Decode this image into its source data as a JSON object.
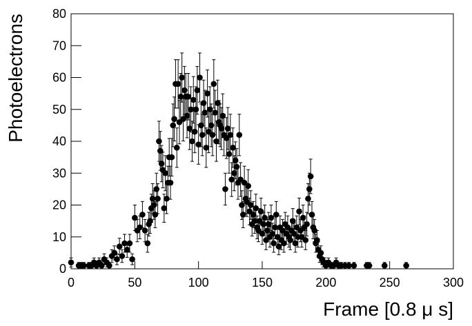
{
  "chart_data": {
    "type": "scatter",
    "xlabel": "Frame [0.8 μ s]",
    "ylabel": "Photoelectrons",
    "xlim": [
      0,
      300
    ],
    "ylim": [
      0,
      80
    ],
    "xticks": [
      0,
      50,
      100,
      150,
      200,
      250,
      300
    ],
    "yticks": [
      0,
      10,
      20,
      30,
      40,
      50,
      60,
      70,
      80
    ],
    "color": "#000000",
    "series": [
      {
        "x": [
          0,
          6,
          8,
          10,
          14,
          16,
          18,
          20,
          22,
          24,
          26,
          28,
          30,
          32,
          34,
          36,
          38,
          40,
          42,
          44,
          46,
          48,
          50,
          52,
          54,
          56,
          58,
          60,
          61,
          62,
          63,
          64,
          65,
          66,
          67,
          68,
          69,
          70,
          71,
          72,
          73,
          74,
          75,
          76,
          77,
          78,
          79,
          80,
          81,
          82,
          83,
          84,
          85,
          86,
          87,
          88,
          89,
          90,
          91,
          92,
          93,
          94,
          95,
          96,
          97,
          98,
          99,
          100,
          101,
          102,
          103,
          104,
          105,
          106,
          107,
          108,
          109,
          110,
          111,
          112,
          113,
          114,
          115,
          116,
          117,
          118,
          119,
          120,
          121,
          122,
          123,
          124,
          125,
          126,
          127,
          128,
          129,
          130,
          131,
          132,
          133,
          134,
          135,
          136,
          137,
          138,
          139,
          140,
          141,
          142,
          143,
          144,
          145,
          146,
          147,
          148,
          149,
          150,
          151,
          152,
          153,
          154,
          155,
          156,
          157,
          158,
          159,
          160,
          161,
          162,
          163,
          164,
          165,
          166,
          167,
          168,
          169,
          170,
          171,
          172,
          173,
          174,
          175,
          176,
          177,
          178,
          179,
          180,
          181,
          182,
          183,
          184,
          185,
          186,
          187,
          188,
          189,
          190,
          191,
          192,
          193,
          194,
          195,
          196,
          197,
          198,
          199,
          200,
          202,
          204,
          206,
          208,
          210,
          212,
          215,
          218,
          222,
          232,
          234,
          246,
          263
        ],
        "values": [
          2,
          1,
          1,
          1,
          1,
          1,
          2,
          1,
          2,
          1,
          3,
          2,
          1,
          4,
          5,
          3,
          7,
          4,
          8,
          6,
          8,
          3,
          16,
          12,
          13,
          17,
          12,
          8,
          14,
          15,
          19,
          22,
          20,
          17,
          25,
          22,
          40,
          37,
          33,
          31,
          19,
          30,
          22,
          27,
          35,
          27,
          35,
          45,
          47,
          58,
          38,
          58,
          46,
          54,
          60,
          47,
          56,
          54,
          48,
          54,
          44,
          50,
          40,
          53,
          43,
          50,
          56,
          39,
          60,
          45,
          42,
          52,
          49,
          38,
          55,
          43,
          50,
          45,
          42,
          58,
          49,
          40,
          52,
          46,
          45,
          44,
          48,
          42,
          25,
          41,
          44,
          36,
          42,
          28,
          38,
          30,
          34,
          32,
          27,
          42,
          28,
          20,
          17,
          27,
          22,
          21,
          26,
          18,
          20,
          14,
          17,
          15,
          19,
          13,
          12,
          15,
          18,
          11,
          14,
          16,
          9,
          12,
          14,
          10,
          16,
          11,
          8,
          13,
          17,
          10,
          7,
          13,
          9,
          12,
          8,
          14,
          11,
          13,
          10,
          9,
          12,
          15,
          11,
          8,
          13,
          10,
          18,
          12,
          10,
          16,
          13,
          9,
          14,
          22,
          25,
          29,
          17,
          13,
          12,
          8,
          9,
          6,
          4,
          5,
          3,
          2,
          2,
          1,
          2,
          1,
          1,
          2,
          1,
          1,
          1,
          1,
          1,
          1,
          1,
          1,
          1
        ],
        "errors": [
          1.4,
          1,
          1,
          1,
          1,
          1,
          1.4,
          1,
          1.4,
          1,
          1.7,
          1.4,
          1,
          2,
          2.2,
          1.7,
          2.6,
          2,
          2.8,
          2.4,
          2.8,
          1.7,
          4,
          3.5,
          3.6,
          4.1,
          3.5,
          2.8,
          3.7,
          3.9,
          4.4,
          4.7,
          4.5,
          4.1,
          5,
          4.7,
          6.3,
          6.1,
          5.7,
          5.6,
          4.4,
          5.5,
          4.7,
          5.2,
          5.9,
          5.2,
          5.9,
          6.7,
          6.9,
          7.6,
          6.2,
          7.6,
          6.8,
          7.3,
          7.7,
          6.9,
          7.5,
          7.3,
          6.9,
          7.3,
          6.6,
          7.1,
          6.3,
          7.3,
          6.6,
          7.1,
          7.5,
          6.2,
          7.7,
          6.7,
          6.5,
          7.2,
          7,
          6.2,
          7.4,
          6.6,
          7.1,
          6.7,
          6.5,
          7.6,
          7,
          6.3,
          7.2,
          6.8,
          6.7,
          6.6,
          6.9,
          6.5,
          5,
          6.4,
          6.6,
          6,
          6.5,
          5.3,
          6.2,
          5.5,
          5.8,
          5.7,
          5.2,
          6.5,
          5.3,
          4.5,
          4.1,
          5.2,
          4.7,
          4.6,
          5.1,
          4.2,
          4.5,
          3.7,
          4.1,
          3.9,
          4.4,
          3.6,
          3.5,
          3.9,
          4.2,
          3.3,
          3.7,
          4,
          3,
          3.5,
          3.7,
          3.2,
          4,
          3.3,
          2.8,
          3.6,
          4.1,
          3.2,
          2.6,
          3.6,
          3,
          3.5,
          2.8,
          3.7,
          3.3,
          3.6,
          3.2,
          3,
          3.5,
          3.9,
          3.3,
          2.8,
          3.6,
          3.2,
          4.2,
          3.5,
          3.2,
          4,
          3.6,
          3,
          3.7,
          4.7,
          5,
          5.4,
          4.1,
          3.6,
          3.5,
          2.8,
          3,
          2.4,
          2,
          2.2,
          1.7,
          1.4,
          1.4,
          1,
          1.4,
          1,
          1,
          1.4,
          1,
          1,
          1,
          1,
          1,
          1,
          1,
          1,
          1
        ]
      }
    ]
  }
}
